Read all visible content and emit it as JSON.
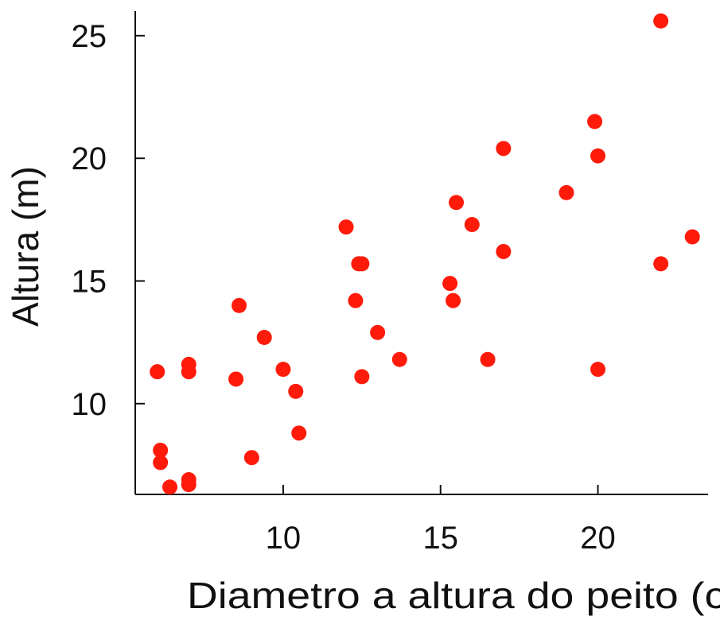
{
  "chart_data": {
    "type": "scatter",
    "title": "",
    "xlabel": "Diametro a altura do peito (cm)",
    "ylabel": "Altura (m)",
    "xlim": [
      5.3,
      23.5
    ],
    "ylim": [
      6.3,
      26.0
    ],
    "xticks": [
      10,
      15,
      20
    ],
    "yticks": [
      10,
      15,
      20,
      25
    ],
    "xtick_labels": [
      "10",
      "15",
      "20"
    ],
    "ytick_labels": [
      "10",
      "15",
      "20",
      "25"
    ],
    "grid": false,
    "legend": "none",
    "point_color": "#ff1a0a",
    "points": [
      {
        "x": 6.0,
        "y": 11.3
      },
      {
        "x": 6.1,
        "y": 8.1
      },
      {
        "x": 6.1,
        "y": 7.6
      },
      {
        "x": 6.4,
        "y": 6.6
      },
      {
        "x": 7.0,
        "y": 11.6
      },
      {
        "x": 7.0,
        "y": 11.3
      },
      {
        "x": 7.0,
        "y": 6.9
      },
      {
        "x": 7.0,
        "y": 6.7
      },
      {
        "x": 8.5,
        "y": 11.0
      },
      {
        "x": 8.6,
        "y": 14.0
      },
      {
        "x": 9.0,
        "y": 7.8
      },
      {
        "x": 9.4,
        "y": 12.7
      },
      {
        "x": 10.0,
        "y": 11.4
      },
      {
        "x": 10.4,
        "y": 10.5
      },
      {
        "x": 10.5,
        "y": 8.8
      },
      {
        "x": 12.0,
        "y": 17.2
      },
      {
        "x": 12.3,
        "y": 14.2
      },
      {
        "x": 12.4,
        "y": 15.7
      },
      {
        "x": 12.5,
        "y": 15.7
      },
      {
        "x": 12.5,
        "y": 11.1
      },
      {
        "x": 13.0,
        "y": 12.9
      },
      {
        "x": 13.7,
        "y": 11.8
      },
      {
        "x": 15.3,
        "y": 14.9
      },
      {
        "x": 15.4,
        "y": 14.2
      },
      {
        "x": 15.5,
        "y": 18.2
      },
      {
        "x": 16.0,
        "y": 17.3
      },
      {
        "x": 16.5,
        "y": 11.8
      },
      {
        "x": 17.0,
        "y": 20.4
      },
      {
        "x": 17.0,
        "y": 16.2
      },
      {
        "x": 19.0,
        "y": 18.6
      },
      {
        "x": 19.9,
        "y": 21.5
      },
      {
        "x": 20.0,
        "y": 20.1
      },
      {
        "x": 20.0,
        "y": 11.4
      },
      {
        "x": 22.0,
        "y": 25.6
      },
      {
        "x": 22.0,
        "y": 15.7
      },
      {
        "x": 23.0,
        "y": 16.8
      }
    ]
  }
}
